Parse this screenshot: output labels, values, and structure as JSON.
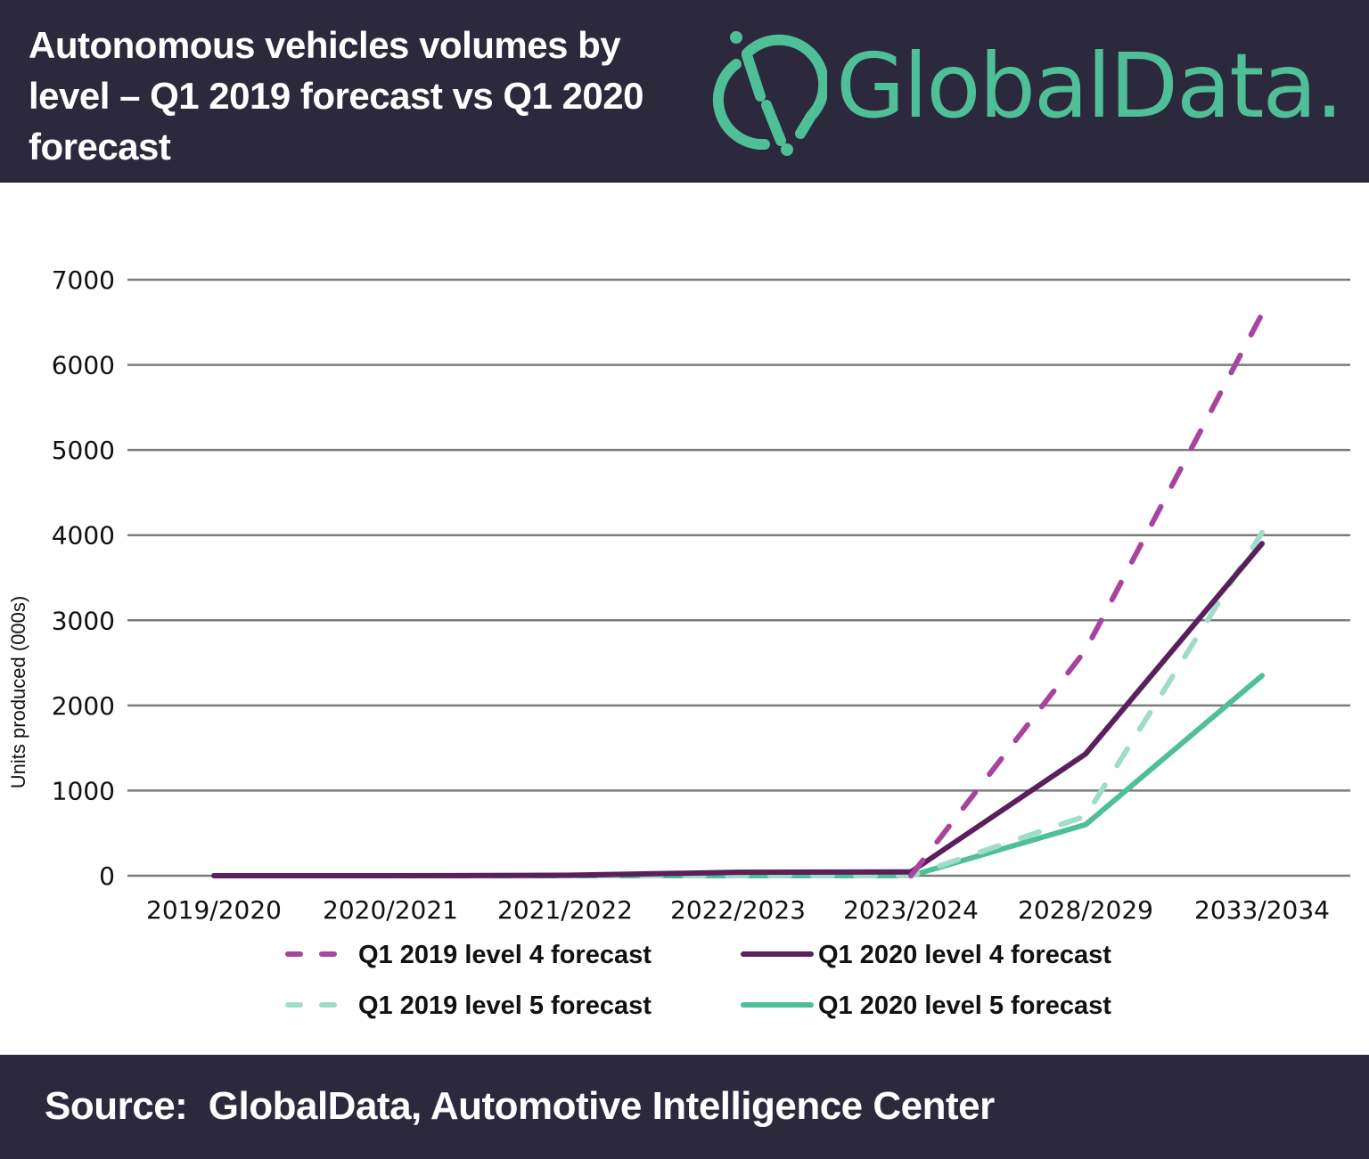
{
  "header": {
    "title": "Autonomous vehicles volumes by level – Q1 2019 forecast vs Q1 2020 forecast",
    "title_lines": [
      "Autonomous vehicles volumes by",
      "level – Q1 2019 forecast vs Q1 2020",
      "forecast"
    ],
    "logo_text": "GlobalData.",
    "background": "#2d293d",
    "brand_color": "#4fbf98"
  },
  "footer": {
    "source": "Source:  GlobalData, Automotive Intelligence Center"
  },
  "chart_data": {
    "type": "line",
    "title": "Autonomous vehicles volumes by level – Q1 2019 forecast vs Q1 2020 forecast",
    "xlabel": "",
    "ylabel": "Units produced (000s)",
    "ylim": [
      0,
      7000
    ],
    "yticks": [
      0,
      1000,
      2000,
      3000,
      4000,
      5000,
      6000,
      7000
    ],
    "ytick_labels": [
      "0",
      "1000",
      "2000",
      "3000",
      "4000",
      "5000",
      "6000",
      "7000"
    ],
    "grid": true,
    "legend_position": "bottom",
    "categories": [
      "2019/2020",
      "2020/2021",
      "2021/2022",
      "2022/2023",
      "2023/2024",
      "2028/2029",
      "2033/2034"
    ],
    "series": [
      {
        "name": "Q1 2019 level 4 forecast",
        "color": "#a8449e",
        "style": "dashed",
        "values": [
          null,
          null,
          null,
          null,
          0,
          2650,
          6600
        ]
      },
      {
        "name": "Q1 2020 level 4 forecast",
        "color": "#5a1f5c",
        "style": "solid",
        "values": [
          0,
          0,
          5,
          40,
          45,
          1430,
          3900
        ]
      },
      {
        "name": "Q1 2019 level 5 forecast",
        "color": "#9fdcc9",
        "style": "dashed",
        "values": [
          0,
          0,
          0,
          0,
          0,
          700,
          4030
        ]
      },
      {
        "name": "Q1 2020 level 5 forecast",
        "color": "#4fbf98",
        "style": "solid",
        "values": [
          0,
          0,
          0,
          0,
          0,
          600,
          2350
        ]
      }
    ]
  }
}
